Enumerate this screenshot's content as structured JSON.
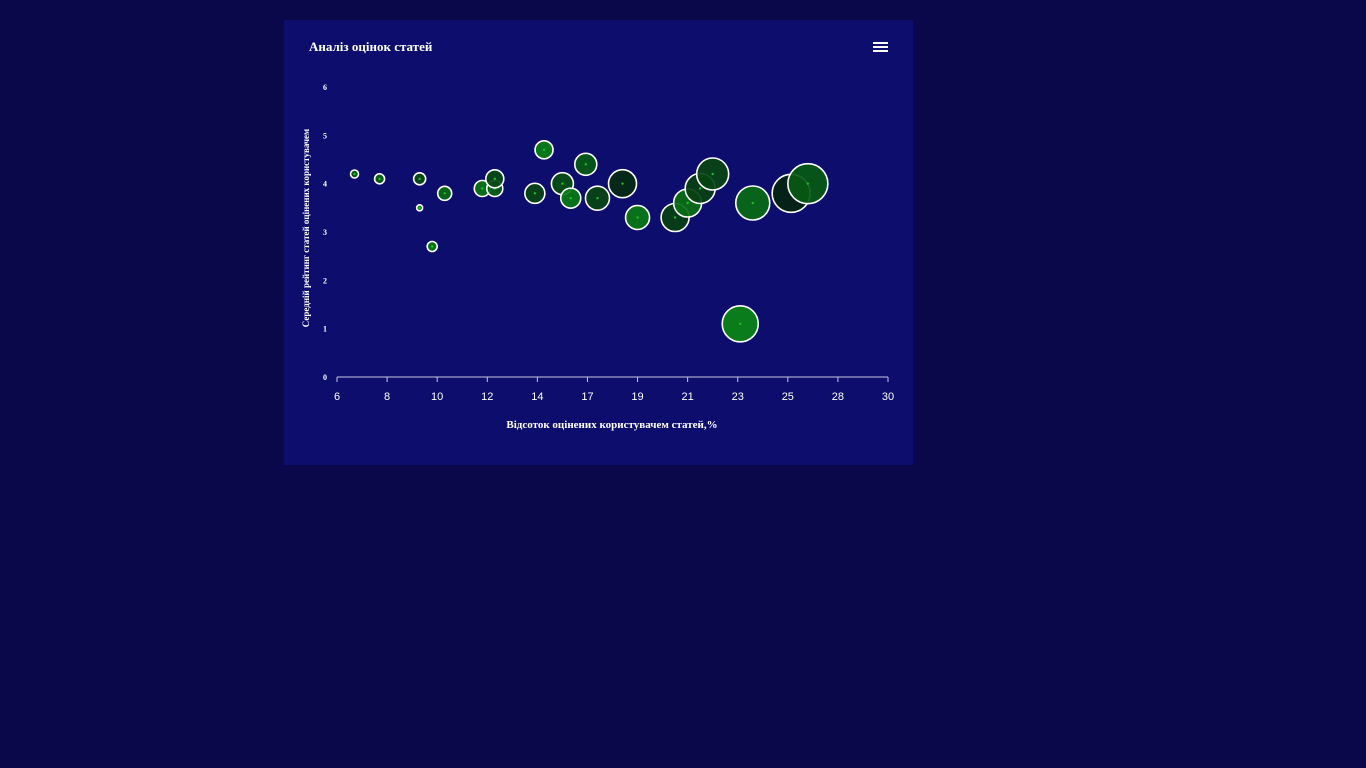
{
  "chart": {
    "title": "Аналіз оцінок статей",
    "menu_icon": "hamburger-menu-icon"
  },
  "colors": {
    "page_background": "#0a084b",
    "card_background": "#0d0d6e",
    "bubble_fill_light": "#0a8a14",
    "bubble_fill_dark": "#041f10",
    "bubble_stroke": "#ffffff",
    "text": "#ffffff"
  },
  "chart_data": {
    "type": "scatter",
    "title": "Аналіз оцінок статей",
    "xlabel": "Відсоток оцінених користувачем статей,%",
    "ylabel": "Середній рейтинг статей оцінених користувачем",
    "xlim": [
      6,
      30
    ],
    "ylim": [
      0,
      6
    ],
    "x_tick_labels": [
      "6",
      "8",
      "10",
      "12",
      "14",
      "17",
      "19",
      "21",
      "23",
      "25",
      "28",
      "30"
    ],
    "y_tick_labels": [
      "0",
      "1",
      "2",
      "3",
      "4",
      "5",
      "6"
    ],
    "grid": false,
    "points": [
      {
        "x": 6.7,
        "y": 4.2,
        "size": 4,
        "shade": 0.55
      },
      {
        "x": 7.7,
        "y": 4.1,
        "size": 5,
        "shade": 0.6
      },
      {
        "x": 9.3,
        "y": 4.1,
        "size": 6,
        "shade": 0.4
      },
      {
        "x": 9.3,
        "y": 3.5,
        "size": 3,
        "shade": 0.9
      },
      {
        "x": 9.8,
        "y": 2.7,
        "size": 5,
        "shade": 0.85
      },
      {
        "x": 10.3,
        "y": 3.8,
        "size": 7,
        "shade": 0.7
      },
      {
        "x": 11.8,
        "y": 3.9,
        "size": 8,
        "shade": 0.8
      },
      {
        "x": 12.3,
        "y": 3.9,
        "size": 8,
        "shade": 0.6
      },
      {
        "x": 12.3,
        "y": 4.1,
        "size": 9,
        "shade": 0.4
      },
      {
        "x": 13.9,
        "y": 3.8,
        "size": 10,
        "shade": 0.35
      },
      {
        "x": 14.4,
        "y": 4.7,
        "size": 9,
        "shade": 0.9
      },
      {
        "x": 15.5,
        "y": 4.0,
        "size": 11,
        "shade": 0.45
      },
      {
        "x": 16.0,
        "y": 3.7,
        "size": 10,
        "shade": 0.85
      },
      {
        "x": 16.9,
        "y": 4.4,
        "size": 11,
        "shade": 0.55
      },
      {
        "x": 17.4,
        "y": 3.7,
        "size": 12,
        "shade": 0.35
      },
      {
        "x": 18.4,
        "y": 4.0,
        "size": 14,
        "shade": 0.1
      },
      {
        "x": 19.0,
        "y": 3.3,
        "size": 12,
        "shade": 0.85
      },
      {
        "x": 20.5,
        "y": 3.3,
        "size": 14,
        "shade": 0.3
      },
      {
        "x": 21.0,
        "y": 3.6,
        "size": 14,
        "shade": 0.75
      },
      {
        "x": 21.5,
        "y": 3.9,
        "size": 15,
        "shade": 0.3
      },
      {
        "x": 22.0,
        "y": 4.2,
        "size": 16,
        "shade": 0.35
      },
      {
        "x": 23.1,
        "y": 1.1,
        "size": 18,
        "shade": 0.95
      },
      {
        "x": 23.6,
        "y": 3.6,
        "size": 17,
        "shade": 0.7
      },
      {
        "x": 25.2,
        "y": 3.8,
        "size": 19,
        "shade": 0.05
      },
      {
        "x": 26.2,
        "y": 4.0,
        "size": 20,
        "shade": 0.55
      }
    ]
  }
}
